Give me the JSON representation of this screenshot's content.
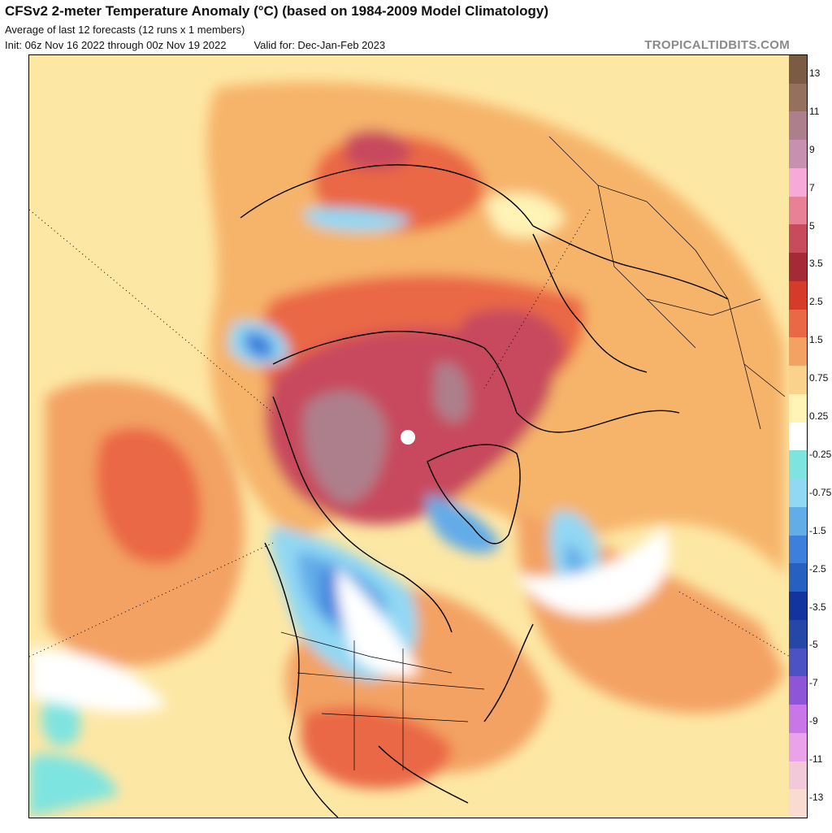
{
  "header": {
    "title": "CFSv2 2-meter Temperature Anomaly (°C) (based on 1984-2009 Model Climatology)",
    "subtitle": "Average of last 12 forecasts (12 runs x 1 members)",
    "init": "Init: 06z Nov 16 2022 through 00z Nov 19 2022",
    "valid": "Valid for: Dec-Jan-Feb 2023",
    "brand": "TROPICALTIDBITS.COM"
  },
  "map": {
    "projection": "polar-stereographic-north",
    "field": "2m-temperature-anomaly"
  },
  "colorbar": {
    "colors": [
      "#7b5b44",
      "#96705f",
      "#ad7f8c",
      "#c790b0",
      "#f7a9da",
      "#e88196",
      "#c84a5d",
      "#a52936",
      "#d63a2b",
      "#ea6845",
      "#f3a264",
      "#fbd28b",
      "#fff3b6",
      "#ffffff",
      "#7ee4e0",
      "#91d8f4",
      "#62ace8",
      "#3c7fdc",
      "#2660c0",
      "#11349e",
      "#2447a8",
      "#4c52c4",
      "#8e55d8",
      "#c876e8",
      "#eaa3eb",
      "#f2c9d8",
      "#f9dbd2"
    ],
    "labels": [
      "13",
      "11",
      "9",
      "7",
      "5",
      "3.5",
      "2.5",
      "1.5",
      "0.75",
      "0.25",
      "-0.25",
      "-0.75",
      "-1.5",
      "-2.5",
      "-3.5",
      "-5",
      "-7",
      "-9",
      "-11",
      "-13"
    ]
  }
}
